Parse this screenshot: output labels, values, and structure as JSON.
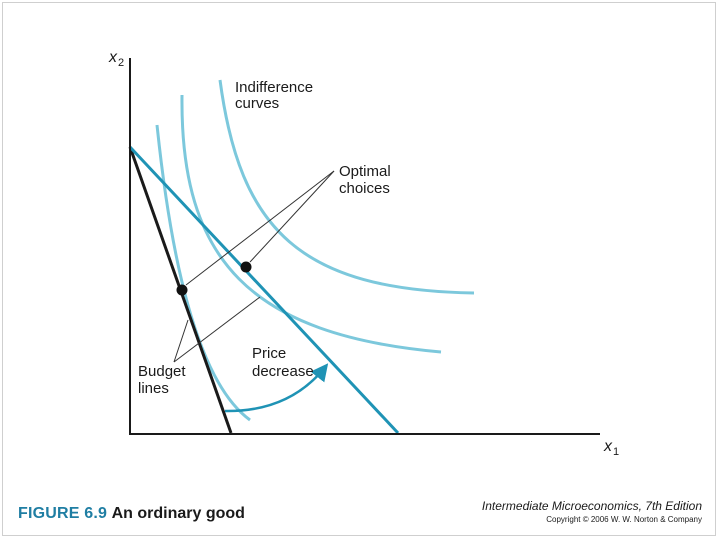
{
  "diagram": {
    "axes": {
      "y_label": "x",
      "y_subscript": "2",
      "x_label": "x",
      "x_subscript": "1"
    },
    "annotations": {
      "indifference_curves": [
        "Indifference",
        "curves"
      ],
      "optimal_choices": [
        "Optimal",
        "choices"
      ],
      "price_decrease": [
        "Price",
        "decrease"
      ],
      "budget_lines": [
        "Budget",
        "lines"
      ]
    },
    "colors": {
      "axis": "#1a1a1a",
      "original_budget_line": "#1a1a1a",
      "new_budget_line": "#1f93b5",
      "indifference_curve": "#7cc8dc",
      "arrow": "#1f93b5",
      "optimal_point": "#111111",
      "leader_line": "#333333"
    }
  },
  "caption": {
    "figure_number": "FIGURE 6.9",
    "figure_title": "An ordinary good"
  },
  "book": {
    "title": "Intermediate Microeconomics, 7th Edition",
    "copyright": "Copyright © 2006 W. W. Norton & Company"
  }
}
